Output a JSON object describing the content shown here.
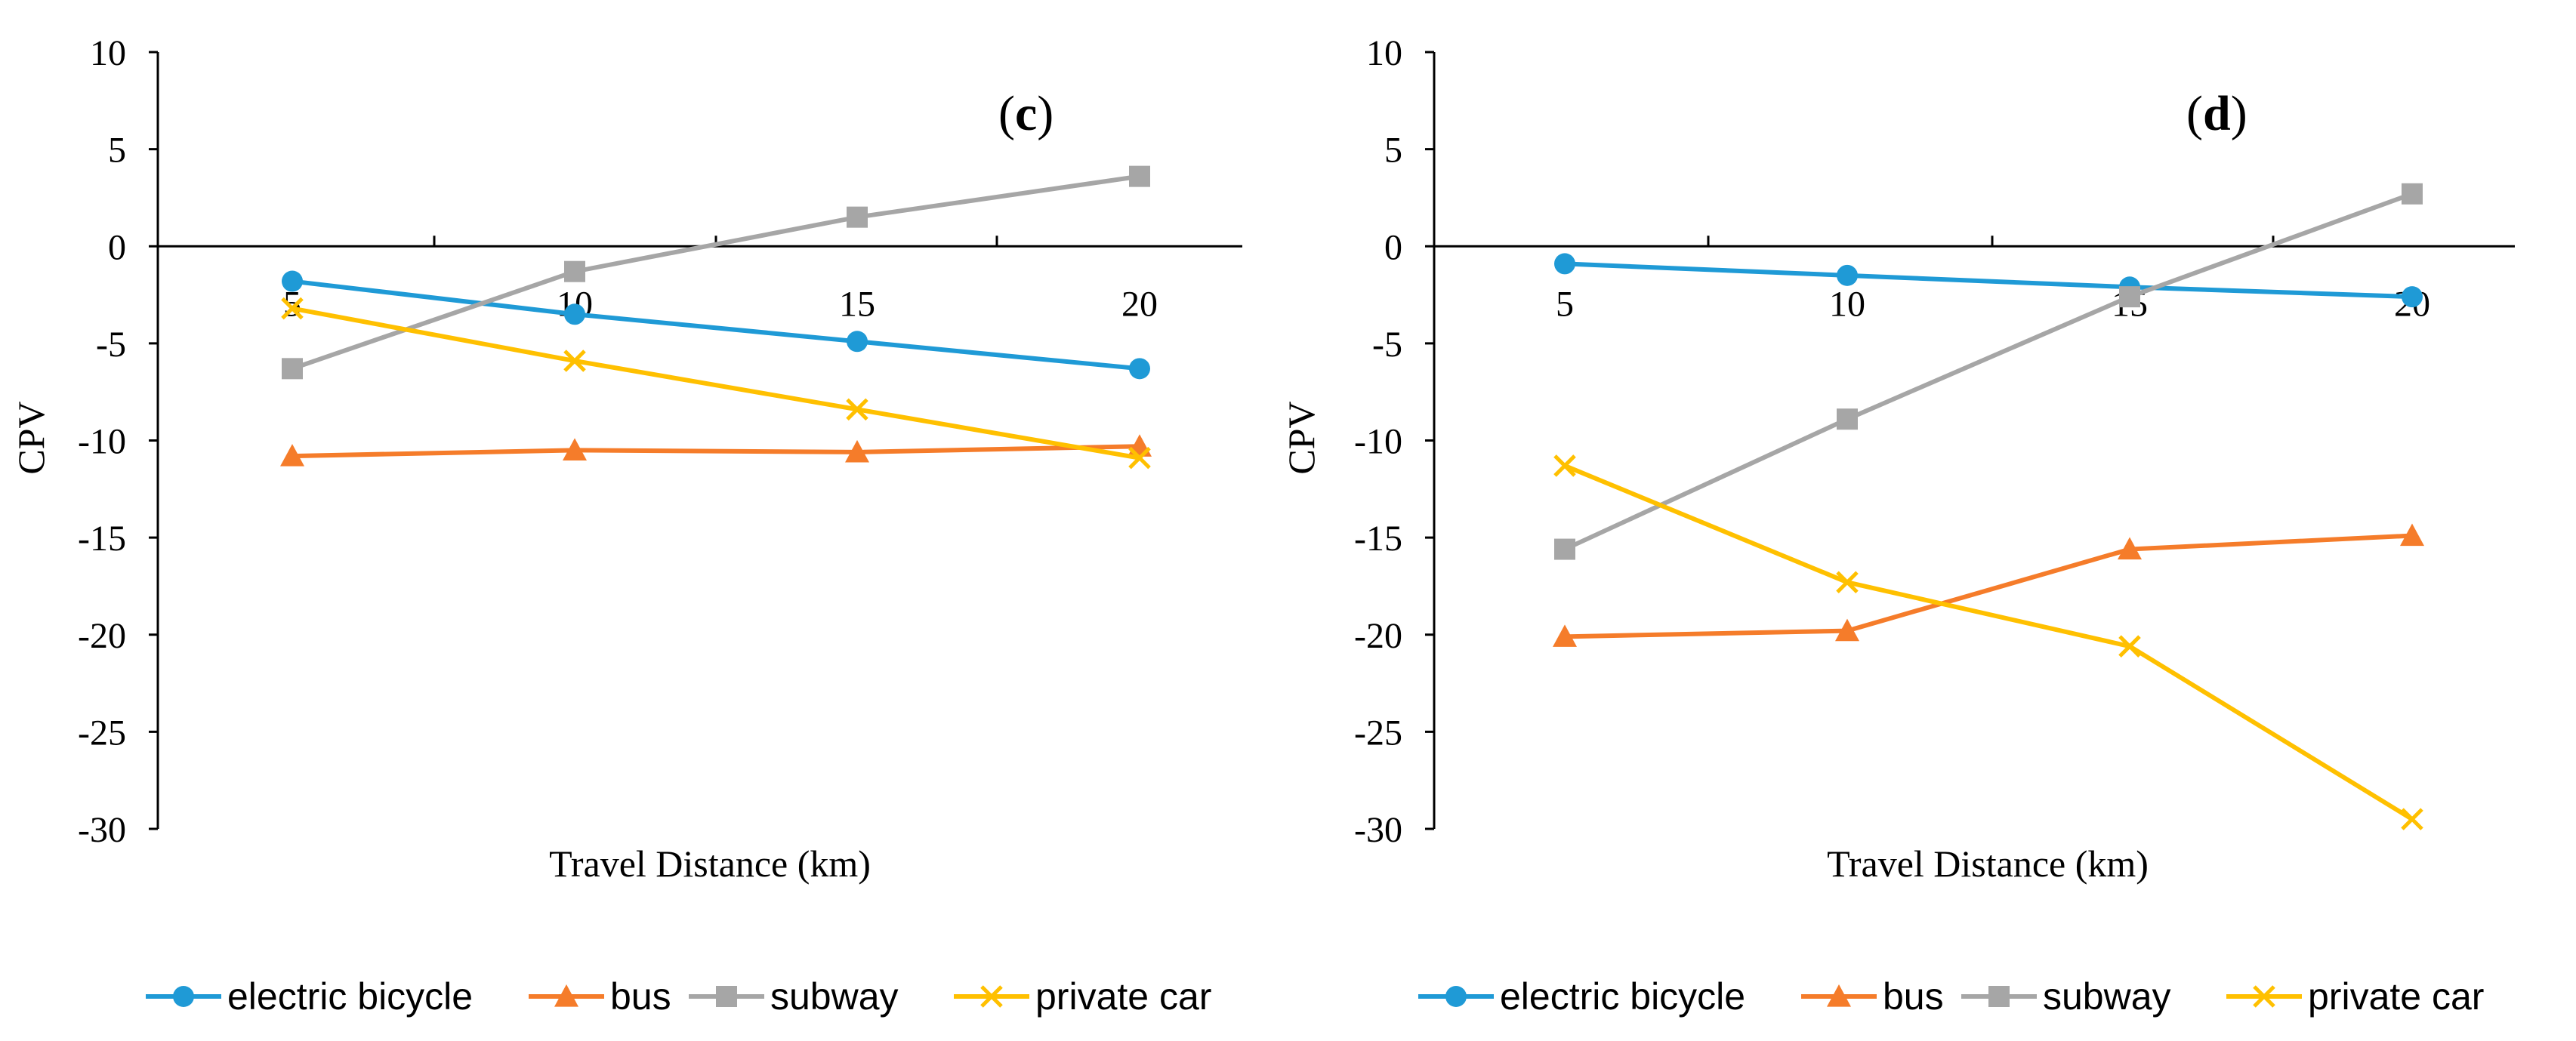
{
  "chart_data": [
    {
      "type": "line",
      "panel_label": "c",
      "xlabel": "Travel Distance (km)",
      "ylabel": "CPV",
      "x": [
        5,
        10,
        15,
        20
      ],
      "x_tick_labels": [
        "5",
        "10",
        "15",
        "20"
      ],
      "y_tick_labels": [
        "10",
        "5",
        "0",
        "-5",
        "-10",
        "-15",
        "-20",
        "-25",
        "-30"
      ],
      "ylim": [
        -30,
        10
      ],
      "series": [
        {
          "name": "electric bicycle",
          "color": "#1f9ad6",
          "marker": "circle",
          "values": [
            -1.8,
            -3.5,
            -4.9,
            -6.3
          ]
        },
        {
          "name": "bus",
          "color": "#f57c2a",
          "marker": "triangle",
          "values": [
            -10.8,
            -10.5,
            -10.6,
            -10.3
          ]
        },
        {
          "name": "subway",
          "color": "#a6a6a6",
          "marker": "square",
          "values": [
            -6.3,
            -1.3,
            1.5,
            3.6
          ]
        },
        {
          "name": "private car",
          "color": "#ffc000",
          "marker": "x",
          "values": [
            -3.2,
            -5.9,
            -8.4,
            -10.9
          ]
        }
      ],
      "legend": [
        "electric bicycle",
        "bus",
        "subway",
        "private car"
      ]
    },
    {
      "type": "line",
      "panel_label": "d",
      "xlabel": "Travel Distance (km)",
      "ylabel": "CPV",
      "x": [
        5,
        10,
        15,
        20
      ],
      "x_tick_labels": [
        "5",
        "10",
        "15",
        "20"
      ],
      "y_tick_labels": [
        "10",
        "5",
        "0",
        "-5",
        "-10",
        "-15",
        "-20",
        "-25",
        "-30"
      ],
      "ylim": [
        -30,
        10
      ],
      "series": [
        {
          "name": "electric bicycle",
          "color": "#1f9ad6",
          "marker": "circle",
          "values": [
            -0.9,
            -1.5,
            -2.1,
            -2.6
          ]
        },
        {
          "name": "bus",
          "color": "#f57c2a",
          "marker": "triangle",
          "values": [
            -20.1,
            -19.8,
            -15.6,
            -14.9
          ]
        },
        {
          "name": "subway",
          "color": "#a6a6a6",
          "marker": "square",
          "values": [
            -15.6,
            -8.9,
            -2.6,
            2.7
          ]
        },
        {
          "name": "private car",
          "color": "#ffc000",
          "marker": "x",
          "values": [
            -11.3,
            -17.3,
            -20.6,
            -29.5
          ]
        }
      ],
      "legend": [
        "electric bicycle",
        "bus",
        "subway",
        "private car"
      ]
    }
  ]
}
